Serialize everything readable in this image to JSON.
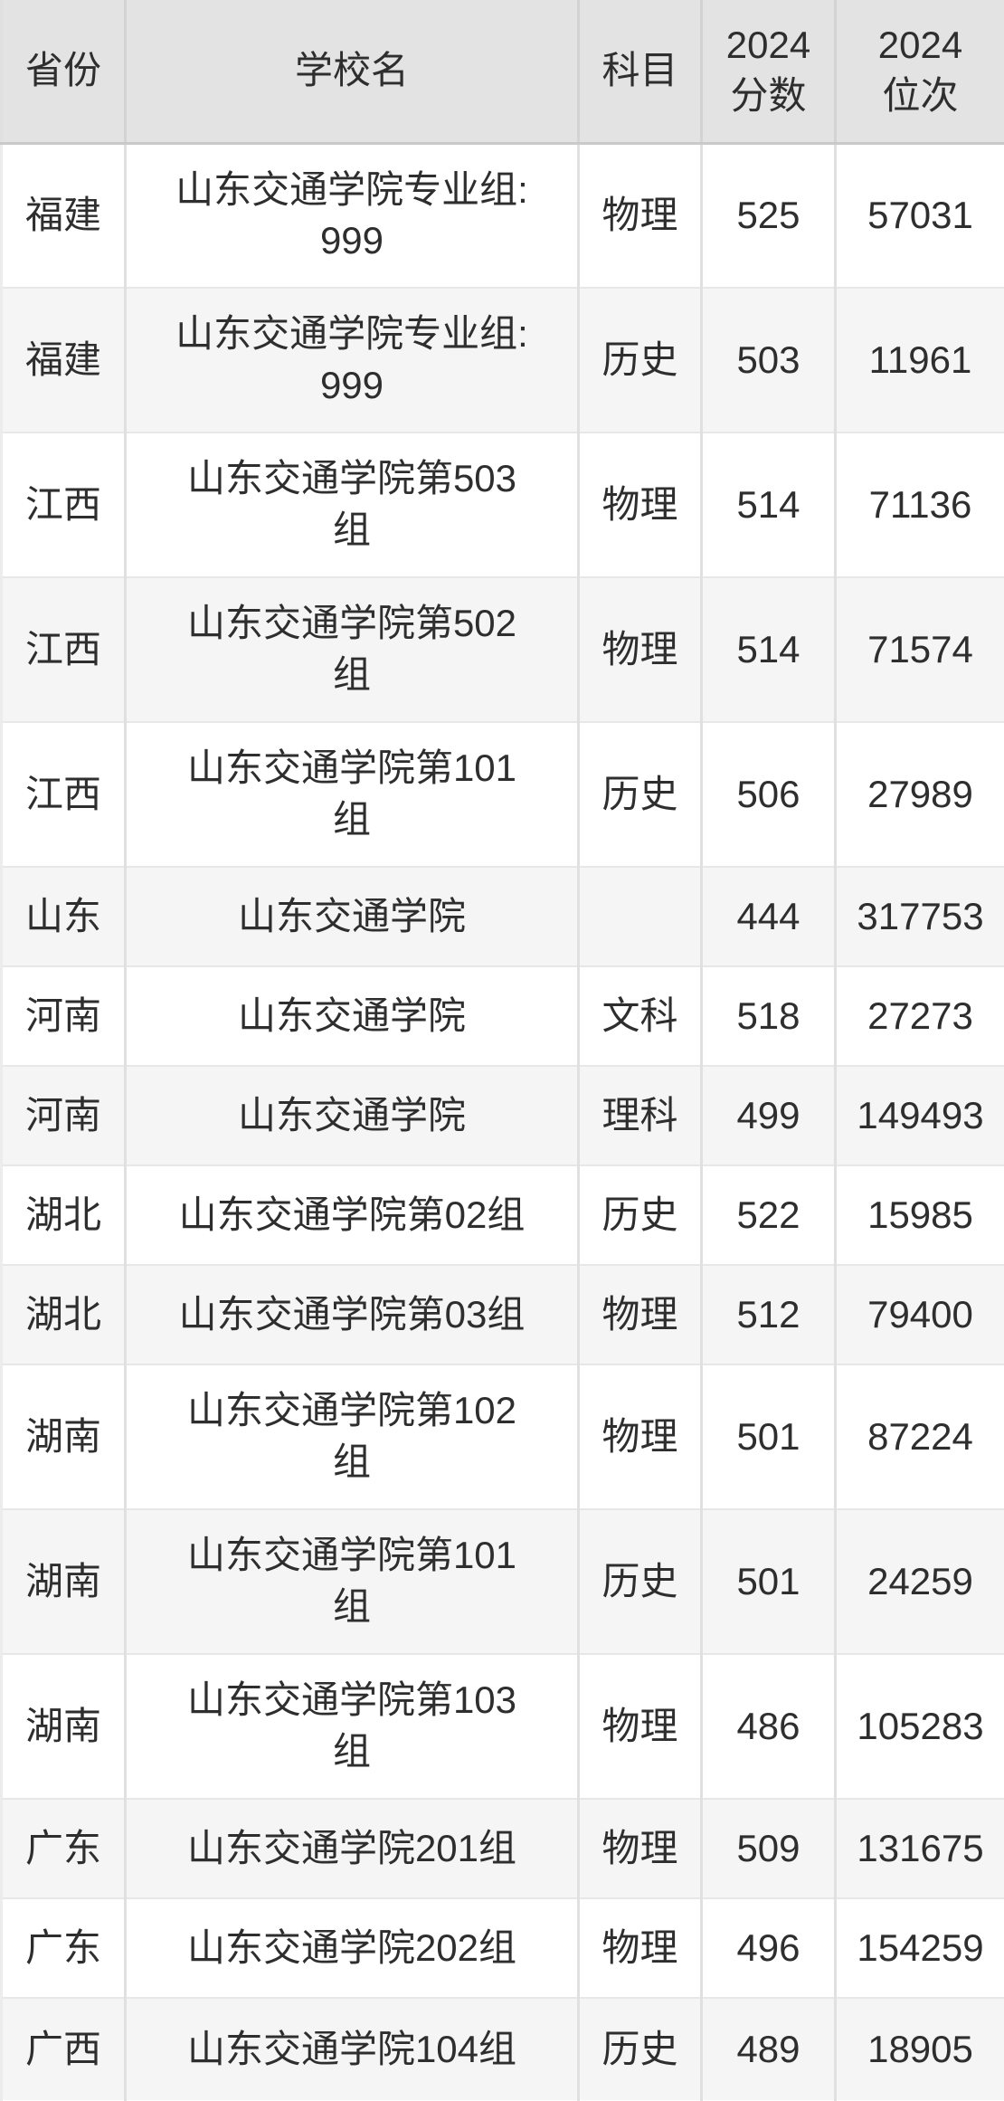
{
  "colors": {
    "header_bg": "#e3e3e3",
    "row_bg": "#ffffff",
    "row_alt_bg": "#f5f5f5",
    "divider_vertical": "#e0e0e0",
    "divider_horizontal": "#e7e7e7",
    "header_divider": "#c9c9c9",
    "text": "#2e2e2e"
  },
  "table": {
    "columns": [
      {
        "key": "province",
        "label": "省份"
      },
      {
        "key": "school",
        "label": "学校名"
      },
      {
        "key": "subject",
        "label": "科目"
      },
      {
        "key": "score",
        "label": "2024\n分数"
      },
      {
        "key": "rank",
        "label": "2024\n位次"
      }
    ],
    "rows": [
      {
        "province": "福建",
        "school": "山东交通学院专业组:\n999",
        "subject": "物理",
        "score": "525",
        "rank": "57031"
      },
      {
        "province": "福建",
        "school": "山东交通学院专业组:\n999",
        "subject": "历史",
        "score": "503",
        "rank": "11961"
      },
      {
        "province": "江西",
        "school": "山东交通学院第503\n组",
        "subject": "物理",
        "score": "514",
        "rank": "71136"
      },
      {
        "province": "江西",
        "school": "山东交通学院第502\n组",
        "subject": "物理",
        "score": "514",
        "rank": "71574"
      },
      {
        "province": "江西",
        "school": "山东交通学院第101\n组",
        "subject": "历史",
        "score": "506",
        "rank": "27989"
      },
      {
        "province": "山东",
        "school": "山东交通学院",
        "subject": "",
        "score": "444",
        "rank": "317753"
      },
      {
        "province": "河南",
        "school": "山东交通学院",
        "subject": "文科",
        "score": "518",
        "rank": "27273"
      },
      {
        "province": "河南",
        "school": "山东交通学院",
        "subject": "理科",
        "score": "499",
        "rank": "149493"
      },
      {
        "province": "湖北",
        "school": "山东交通学院第02组",
        "subject": "历史",
        "score": "522",
        "rank": "15985"
      },
      {
        "province": "湖北",
        "school": "山东交通学院第03组",
        "subject": "物理",
        "score": "512",
        "rank": "79400"
      },
      {
        "province": "湖南",
        "school": "山东交通学院第102\n组",
        "subject": "物理",
        "score": "501",
        "rank": "87224"
      },
      {
        "province": "湖南",
        "school": "山东交通学院第101\n组",
        "subject": "历史",
        "score": "501",
        "rank": "24259"
      },
      {
        "province": "湖南",
        "school": "山东交通学院第103\n组",
        "subject": "物理",
        "score": "486",
        "rank": "105283"
      },
      {
        "province": "广东",
        "school": "山东交通学院201组",
        "subject": "物理",
        "score": "509",
        "rank": "131675"
      },
      {
        "province": "广东",
        "school": "山东交通学院202组",
        "subject": "物理",
        "score": "496",
        "rank": "154259"
      },
      {
        "province": "广西",
        "school": "山东交通学院104组",
        "subject": "历史",
        "score": "489",
        "rank": "18905"
      }
    ]
  }
}
